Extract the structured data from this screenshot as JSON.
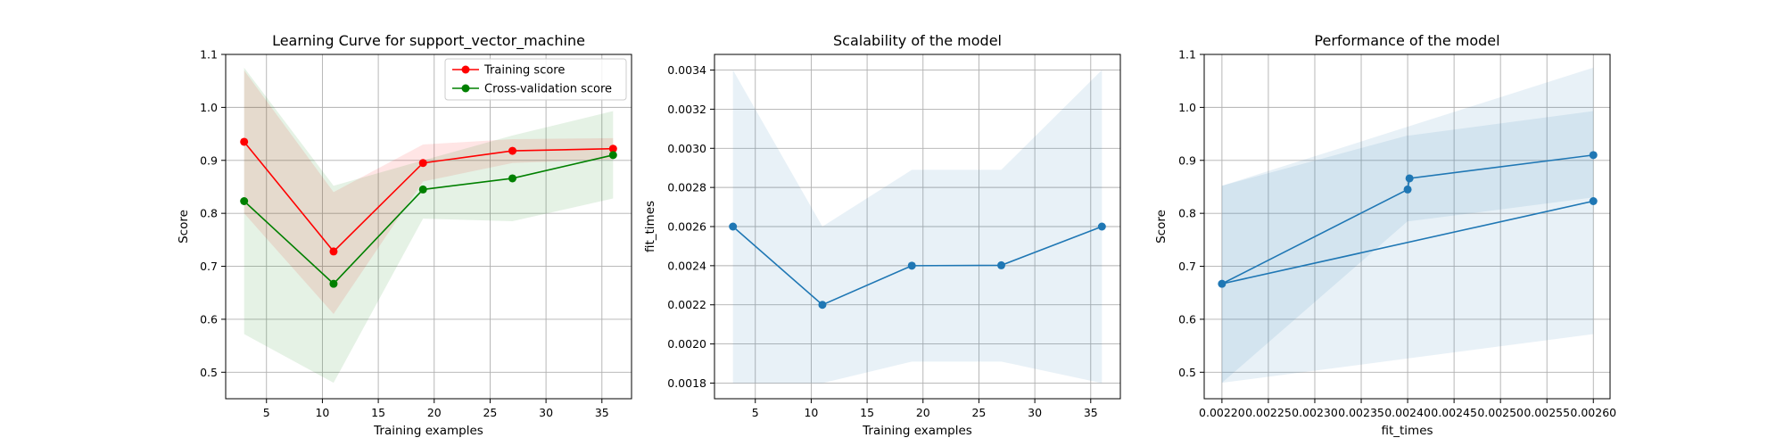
{
  "colors": {
    "train": "#ff0000",
    "cv": "#008000",
    "blue": "#1f77b4",
    "band_blue": "#1f77b4",
    "grid": "#b0b0b0"
  },
  "chart_data": [
    {
      "type": "line",
      "title": "Learning Curve for support_vector_machine",
      "xlabel": "Training examples",
      "ylabel": "Score",
      "xlim": [
        1.35,
        37.65
      ],
      "ylim": [
        0.45,
        1.1
      ],
      "xticks": [
        5,
        10,
        15,
        20,
        25,
        30,
        35
      ],
      "xtick_labels": [
        "5",
        "10",
        "15",
        "20",
        "25",
        "30",
        "35"
      ],
      "yticks": [
        0.5,
        0.6,
        0.7,
        0.8,
        0.9,
        1.0,
        1.1
      ],
      "ytick_labels": [
        "0.5",
        "0.6",
        "0.7",
        "0.8",
        "0.9",
        "1.0",
        "1.1"
      ],
      "grid": true,
      "legend": "top-right",
      "x": [
        3,
        11,
        19,
        27,
        36
      ],
      "series": [
        {
          "name": "Training score",
          "color": "red",
          "values": [
            0.935,
            0.728,
            0.895,
            0.918,
            0.922
          ],
          "band_lower": [
            0.8,
            0.61,
            0.86,
            0.895,
            0.902
          ],
          "band_upper": [
            1.07,
            0.84,
            0.93,
            0.94,
            0.942
          ]
        },
        {
          "name": "Cross-validation score",
          "color": "green",
          "values": [
            0.823,
            0.667,
            0.845,
            0.866,
            0.91
          ],
          "band_lower": [
            0.572,
            0.48,
            0.79,
            0.785,
            0.828
          ],
          "band_upper": [
            1.075,
            0.852,
            0.9,
            0.947,
            0.993
          ]
        }
      ]
    },
    {
      "type": "line",
      "title": "Scalability of the model",
      "xlabel": "Training examples",
      "ylabel": "fit_times",
      "xlim": [
        1.35,
        37.65
      ],
      "ylim": [
        0.00172,
        0.00348
      ],
      "xticks": [
        5,
        10,
        15,
        20,
        25,
        30,
        35
      ],
      "xtick_labels": [
        "5",
        "10",
        "15",
        "20",
        "25",
        "30",
        "35"
      ],
      "yticks": [
        0.0018,
        0.002,
        0.0022,
        0.0024,
        0.0026,
        0.0028,
        0.003,
        0.0032,
        0.0034
      ],
      "ytick_labels": [
        "0.0018",
        "0.0020",
        "0.0022",
        "0.0024",
        "0.0026",
        "0.0028",
        "0.0030",
        "0.0032",
        "0.0034"
      ],
      "grid": true,
      "x": [
        3,
        11,
        19,
        27,
        36
      ],
      "series": [
        {
          "values": [
            0.0026,
            0.0022,
            0.0024,
            0.002402,
            0.0026
          ],
          "band_lower": [
            0.0018,
            0.0018,
            0.00191,
            0.00191,
            0.0018
          ],
          "band_upper": [
            0.0034,
            0.0026,
            0.00289,
            0.00289,
            0.0034
          ]
        }
      ]
    },
    {
      "type": "line",
      "title": "Performance of the model",
      "xlabel": "fit_times",
      "ylabel": "Score",
      "xlim": [
        0.0021809,
        0.002618
      ],
      "ylim": [
        0.45,
        1.1
      ],
      "xticks": [
        0.0022,
        0.00225,
        0.0023,
        0.00235,
        0.0024,
        0.00245,
        0.0025,
        0.00255,
        0.0026
      ],
      "xtick_labels": [
        "0.00220",
        "0.00225",
        "0.00230",
        "0.00235",
        "0.00240",
        "0.00245",
        "0.00250",
        "0.00255",
        "0.00260"
      ],
      "yticks": [
        0.5,
        0.6,
        0.7,
        0.8,
        0.9,
        1.0,
        1.1
      ],
      "ytick_labels": [
        "0.5",
        "0.6",
        "0.7",
        "0.8",
        "0.9",
        "1.0",
        "1.1"
      ],
      "grid": true,
      "series": [
        {
          "x": [
            0.0022,
            0.0024,
            0.002402,
            0.0026,
            0.0026
          ],
          "values": [
            0.667,
            0.845,
            0.866,
            0.91,
            0.823
          ],
          "line_order_x": [
            0.0026,
            0.0022,
            0.0024,
            0.002402,
            0.0026
          ],
          "line_order_y": [
            0.823,
            0.667,
            0.845,
            0.866,
            0.91
          ],
          "band_order_x": [
            0.0022,
            0.0024,
            0.002402,
            0.0026
          ],
          "band_lower": [
            0.48,
            0.785,
            0.785,
            0.83
          ],
          "band_upper": [
            0.852,
            0.947,
            0.947,
            0.993
          ],
          "band2_x": [
            0.0022,
            0.0026
          ],
          "band2_lower": [
            0.48,
            0.572
          ],
          "band2_upper": [
            0.852,
            1.075
          ]
        }
      ]
    }
  ]
}
